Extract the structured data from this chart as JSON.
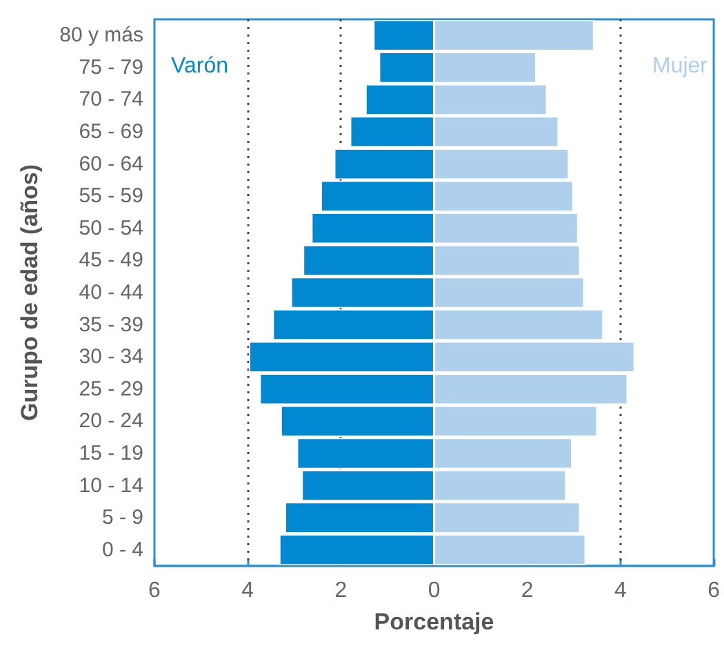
{
  "chart_data": {
    "type": "bar",
    "orientation": "horizontal",
    "xlabel": "Porcentaje",
    "ylabel": "Gurupo de edad (años)",
    "categories": [
      "80 y más",
      "75 - 79",
      "70 - 74",
      "65 - 69",
      "60 - 64",
      "55 - 59",
      "50 - 54",
      "45 - 49",
      "40 - 44",
      "35 - 39",
      "30 - 34",
      "25 - 29",
      "20 - 24",
      "15 - 19",
      "10 - 14",
      "5 - 9",
      "0 - 4"
    ],
    "series": [
      {
        "name": "Varón",
        "color": "#0088d1",
        "values": [
          -1.3,
          -1.18,
          -1.47,
          -1.8,
          -2.14,
          -2.43,
          -2.63,
          -2.81,
          -3.07,
          -3.46,
          -3.97,
          -3.74,
          -3.29,
          -2.94,
          -2.84,
          -3.2,
          -3.32
        ]
      },
      {
        "name": "Mujer",
        "color": "#aed0ec",
        "values": [
          3.43,
          2.19,
          2.42,
          2.67,
          2.89,
          2.99,
          3.09,
          3.13,
          3.22,
          3.63,
          4.3,
          4.15,
          3.5,
          2.96,
          2.83,
          3.13,
          3.25
        ]
      }
    ],
    "xlim": [
      -6,
      6
    ],
    "xticks": [
      {
        "value": -6,
        "label": "6"
      },
      {
        "value": -4,
        "label": "4"
      },
      {
        "value": -2,
        "label": "2"
      },
      0,
      2,
      4,
      6
    ],
    "ref_lines": [
      {
        "axis": "x",
        "value": -4,
        "line_style": "dotted",
        "color": "#444444"
      },
      {
        "axis": "x",
        "value": -2,
        "line_style": "dotted",
        "color": "#444444"
      },
      {
        "axis": "x",
        "value": 4,
        "line_style": "dotted",
        "color": "#444444"
      }
    ],
    "stacked": true,
    "grid": false,
    "legend": false
  }
}
